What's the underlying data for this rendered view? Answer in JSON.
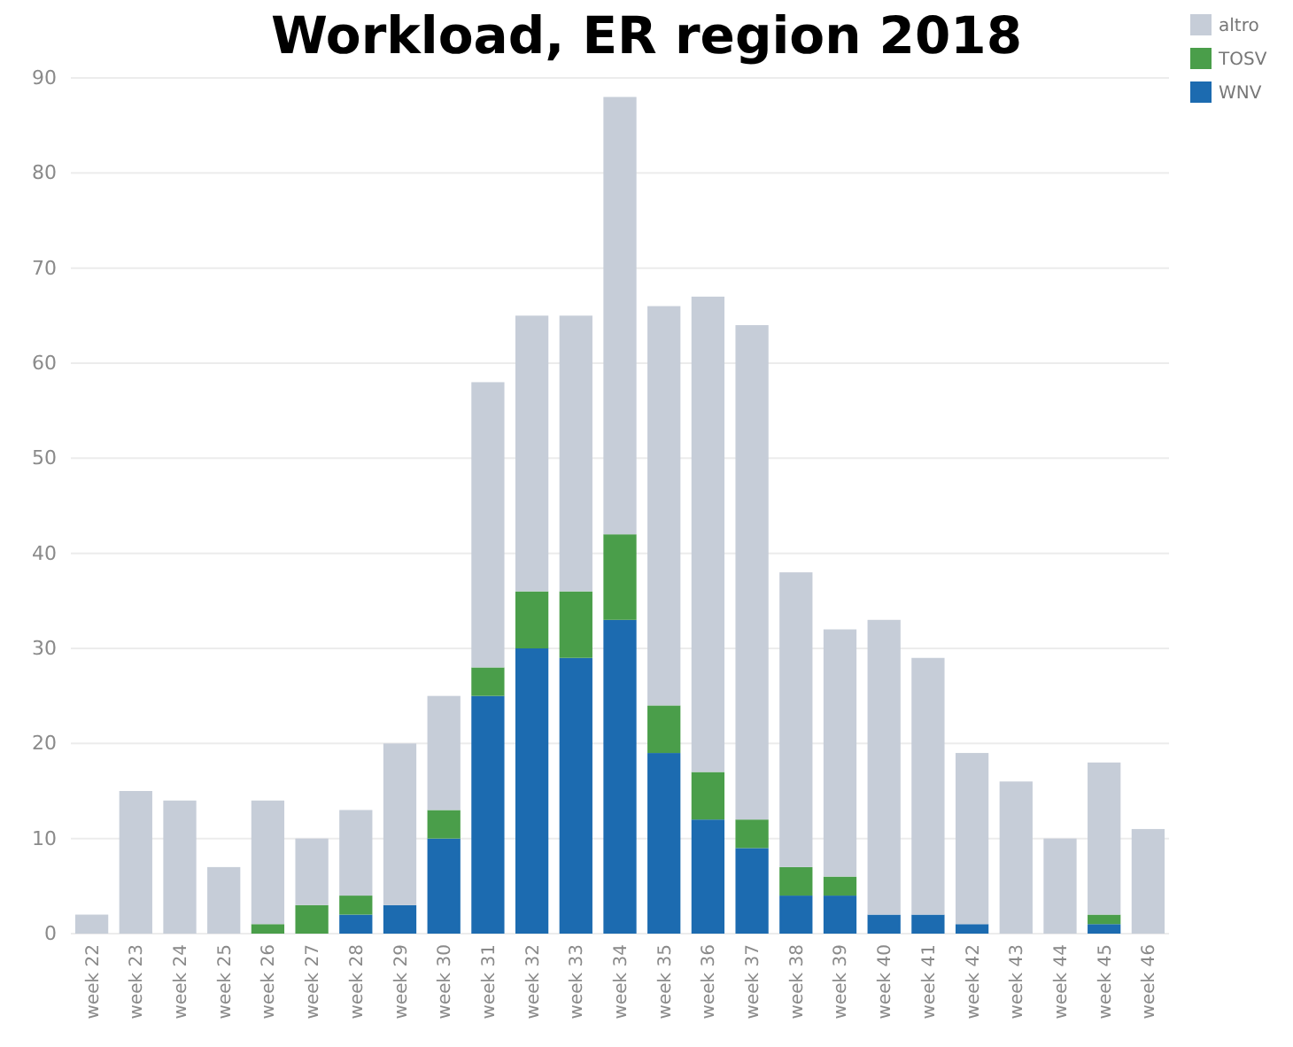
{
  "chart_data": {
    "type": "bar",
    "title": "Workload, ER region 2018",
    "categories": [
      "week 22",
      "week 23",
      "week 24",
      "week 25",
      "week 26",
      "week 27",
      "week 28",
      "week 29",
      "week 30",
      "week 31",
      "week 32",
      "week 33",
      "week 34",
      "week 35",
      "week 36",
      "week 37",
      "week 38",
      "week 39",
      "week 40",
      "week 41",
      "week 42",
      "week 43",
      "week 44",
      "week 45",
      "week 46"
    ],
    "series": [
      {
        "name": "WNV",
        "color": "#1c6bb0",
        "values": [
          0,
          0,
          0,
          0,
          0,
          0,
          2,
          3,
          10,
          25,
          30,
          29,
          33,
          19,
          12,
          9,
          4,
          4,
          2,
          2,
          1,
          0,
          0,
          1,
          0
        ]
      },
      {
        "name": "TOSV",
        "color": "#4a9e4a",
        "values": [
          0,
          0,
          0,
          0,
          1,
          3,
          2,
          0,
          3,
          3,
          6,
          7,
          9,
          5,
          5,
          3,
          3,
          2,
          0,
          0,
          0,
          0,
          0,
          1,
          0
        ]
      },
      {
        "name": "altro",
        "color": "#c6cdd8",
        "values": [
          2,
          15,
          14,
          7,
          13,
          7,
          9,
          17,
          12,
          30,
          29,
          29,
          46,
          42,
          50,
          52,
          31,
          26,
          31,
          27,
          18,
          16,
          10,
          16,
          11
        ]
      }
    ],
    "stacked": true,
    "ylim": [
      0,
      90
    ],
    "yticks": [
      0,
      10,
      20,
      30,
      40,
      50,
      60,
      70,
      80,
      90
    ],
    "grid": "y",
    "legend": "top right"
  }
}
